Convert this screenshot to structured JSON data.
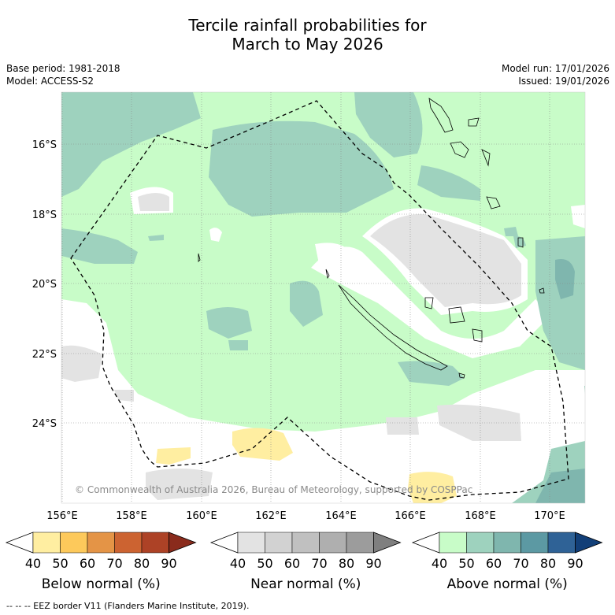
{
  "title_line1": "Tercile rainfall probabilities for",
  "title_line2": "March to May 2026",
  "meta": {
    "base_period": "Base period: 1981-2018",
    "model": "Model: ACCESS-S2",
    "model_run": "Model run: 17/01/2026",
    "issued": "Issued: 19/01/2026"
  },
  "map": {
    "lat_ticks": [
      "16°S",
      "18°S",
      "20°S",
      "22°S",
      "24°S"
    ],
    "lon_ticks": [
      "156°E",
      "158°E",
      "160°E",
      "162°E",
      "164°E",
      "166°E",
      "168°E",
      "170°E"
    ],
    "copyright": "© Commonwealth of Australia 2026, Bureau of Meteorology, supported by COSPPac",
    "colors": {
      "white": "#ffffff",
      "near_light": "#e3e3e3",
      "above_50": "#c8fcc8",
      "above_60": "#9ed2be",
      "above_70": "#7fb6ae",
      "above_80": "#5c99a3",
      "below_50": "#ffeea1",
      "land_outline": "#000000"
    }
  },
  "colorbars": [
    {
      "label": "Below normal (%)",
      "ticks": [
        "40",
        "50",
        "60",
        "70",
        "80",
        "90"
      ],
      "colors": [
        "#ffeea1",
        "#fdc95b",
        "#e49446",
        "#cc6331",
        "#ad4226",
        "#8a2b1c"
      ]
    },
    {
      "label": "Near normal (%)",
      "ticks": [
        "40",
        "50",
        "60",
        "70",
        "80",
        "90"
      ],
      "colors": [
        "#e3e3e3",
        "#d2d2d2",
        "#c0c0c0",
        "#afafaf",
        "#9c9c9c",
        "#7f7f7f"
      ]
    },
    {
      "label": "Above normal (%)",
      "ticks": [
        "40",
        "50",
        "60",
        "70",
        "80",
        "90"
      ],
      "colors": [
        "#c8fcc8",
        "#9ed2be",
        "#7fb6ae",
        "#5c99a3",
        "#2f6296",
        "#123f78"
      ]
    }
  ],
  "footer": "--  --  -- EEZ border V11 (Flanders Marine Institute, 2019)."
}
